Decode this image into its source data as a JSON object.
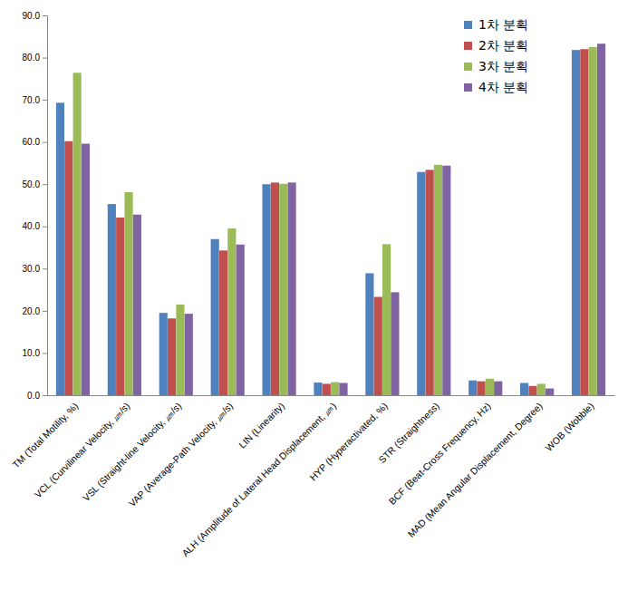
{
  "chart_data": {
    "type": "bar",
    "categories": [
      "TM (Total Motility, %)",
      "VCL (Curvilinear Velocity, ㎛/s)",
      "VSL (Straight-line Velocity, ㎛/s)",
      "VAP (Average-Path Velocity, ㎛/s)",
      "LIN (Linearity)",
      "ALH (Amplitude of Lateral Head Displacement, ㎛)",
      "HYP (Hyperactivated, %)",
      "STR (Straightness)",
      "BCF (Beat-Cross Frequency, Hz)",
      "MAD (Mean Angular Displacement, Degree)",
      "WOB (Wobble)"
    ],
    "series": [
      {
        "name": "1차 분획",
        "color": "#4f81bd",
        "values": [
          69.3,
          45.3,
          19.5,
          37.0,
          50.0,
          3.0,
          28.9,
          52.9,
          3.5,
          2.9,
          81.8
        ]
      },
      {
        "name": "2차 분획",
        "color": "#c0504d",
        "values": [
          60.2,
          42.1,
          18.2,
          34.3,
          50.4,
          2.7,
          23.3,
          53.4,
          3.3,
          2.2,
          82.0
        ]
      },
      {
        "name": "3차 분획",
        "color": "#9bbb59",
        "values": [
          76.4,
          48.1,
          21.5,
          39.5,
          50.1,
          3.1,
          35.8,
          54.6,
          3.9,
          2.7,
          82.5
        ]
      },
      {
        "name": "4차 분획",
        "color": "#8064a2",
        "values": [
          59.6,
          42.8,
          19.3,
          35.7,
          50.4,
          2.9,
          24.4,
          54.4,
          3.3,
          1.6,
          83.3
        ]
      }
    ],
    "ylim": [
      0,
      90
    ],
    "yticks": [
      {
        "value": 0,
        "label": "0.0"
      },
      {
        "value": 10,
        "label": "10.0"
      },
      {
        "value": 20,
        "label": "20.0"
      },
      {
        "value": 30,
        "label": "30.0"
      },
      {
        "value": 40,
        "label": "40.0"
      },
      {
        "value": 50,
        "label": "50.0"
      },
      {
        "value": 60,
        "label": "60.0"
      },
      {
        "value": 70,
        "label": "70.0"
      },
      {
        "value": 80,
        "label": "80.0"
      },
      {
        "value": 90,
        "label": "90.0"
      }
    ],
    "grid": false,
    "legend": "upper right"
  }
}
